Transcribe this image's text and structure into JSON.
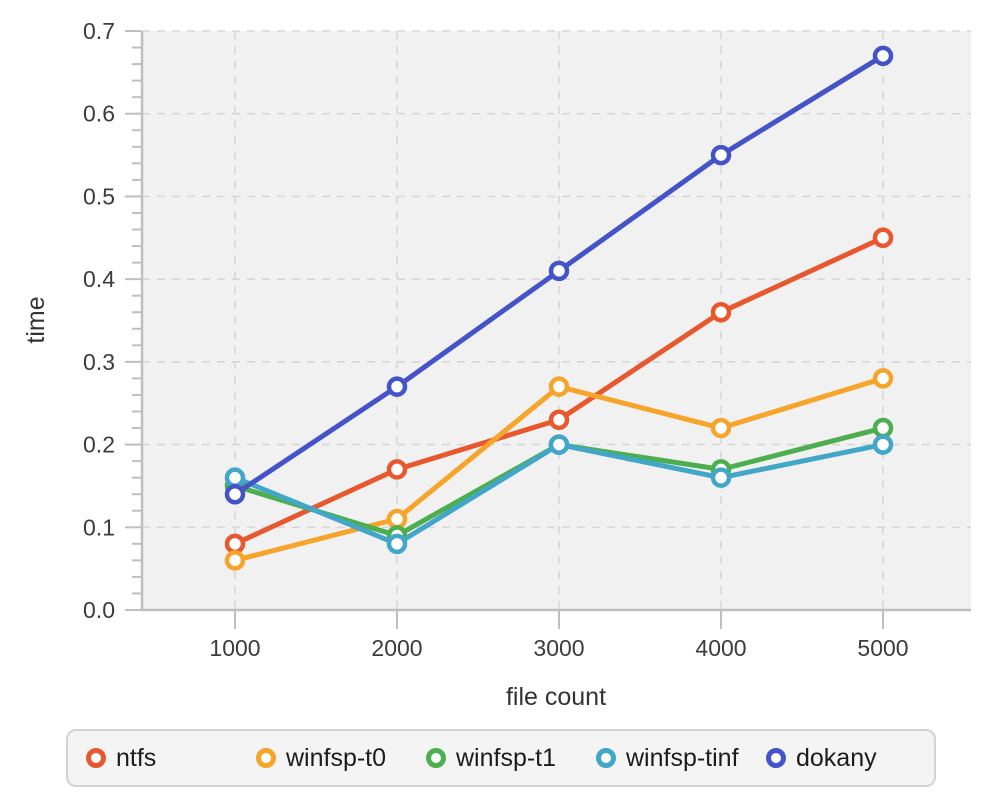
{
  "chart_data": {
    "type": "line",
    "title": "",
    "xlabel": "file count",
    "ylabel": "time",
    "x": [
      1000,
      2000,
      3000,
      4000,
      5000
    ],
    "xtick_labels": [
      "1000",
      "2000",
      "3000",
      "4000",
      "5000"
    ],
    "yticks": [
      0.0,
      0.1,
      0.2,
      0.3,
      0.4,
      0.5,
      0.6,
      0.7
    ],
    "ytick_labels": [
      "0.0",
      "0.1",
      "0.2",
      "0.3",
      "0.4",
      "0.5",
      "0.6",
      "0.7"
    ],
    "ylim": [
      0,
      0.7
    ],
    "minor_ytick_step": 0.02,
    "grid": true,
    "grid_style": "dashed",
    "legend_position": "bottom",
    "series": [
      {
        "name": "ntfs",
        "color": "#E8582F",
        "values": [
          0.08,
          0.17,
          0.23,
          0.36,
          0.45
        ]
      },
      {
        "name": "winfsp-t0",
        "color": "#F6A42A",
        "values": [
          0.06,
          0.11,
          0.27,
          0.22,
          0.28
        ]
      },
      {
        "name": "winfsp-t1",
        "color": "#4DAE4F",
        "values": [
          0.15,
          0.09,
          0.2,
          0.17,
          0.22
        ]
      },
      {
        "name": "winfsp-tinf",
        "color": "#41A6C8",
        "values": [
          0.16,
          0.08,
          0.2,
          0.16,
          0.2
        ]
      },
      {
        "name": "dokany",
        "color": "#4454C8",
        "values": [
          0.14,
          0.27,
          0.41,
          0.55,
          0.67
        ]
      }
    ]
  }
}
